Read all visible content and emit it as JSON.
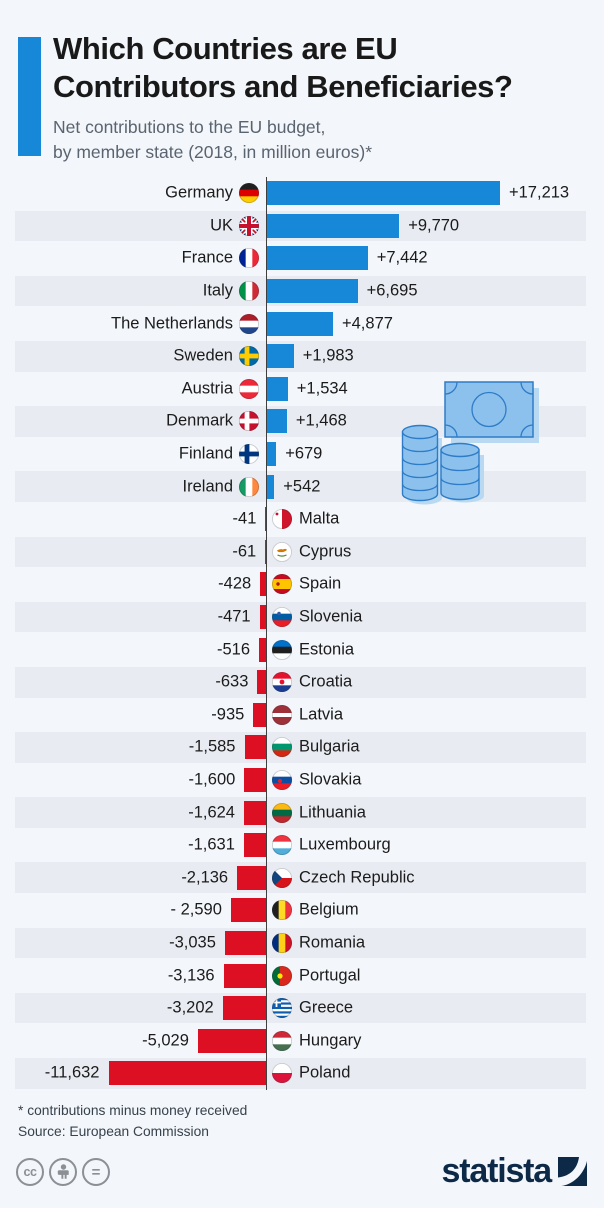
{
  "header": {
    "title_lines": [
      "Which Countries are EU",
      "Contributors and Beneficiaries?"
    ],
    "subtitle_lines": [
      "Net contributions to the EU budget,",
      "by member state (2018, in million euros)*"
    ]
  },
  "footer": {
    "footnote": "* contributions minus money received",
    "source": "Source: European Commission",
    "license_glyphs": {
      "cc": "cc",
      "no_derivatives": "="
    },
    "logo_text": "statista"
  },
  "colors": {
    "background": "#f3f6fa",
    "row_stripe": "#e8ecf2",
    "accent_blue": "#1787d8",
    "positive_bar": "#1787d8",
    "negative_bar": "#dc0f23",
    "axis_line": "#3f3f3f",
    "logo_navy": "#0c2a47",
    "illustration_fill": "#8cc1ee",
    "illustration_stroke": "#2e7cc6"
  },
  "chart_data": {
    "type": "bar",
    "orientation": "horizontal-diverging",
    "title": "Which Countries are EU Contributors and Beneficiaries?",
    "subtitle": "Net contributions to the EU budget, by member state (2018, in million euros)*",
    "unit": "million euros",
    "year": "2018",
    "value_axis_max": 17213,
    "grid": false,
    "legend": false,
    "rows": [
      {
        "country": "Germany",
        "value": 17213,
        "display": "+17,213",
        "flag": {
          "kind": "h",
          "colors": [
            "#1f1f1f",
            "#dd0000",
            "#ffce00"
          ]
        }
      },
      {
        "country": "UK",
        "value": 9770,
        "display": "+9,770",
        "flag": {
          "kind": "uk"
        }
      },
      {
        "country": "France",
        "value": 7442,
        "display": "+7,442",
        "flag": {
          "kind": "v",
          "colors": [
            "#002395",
            "#ffffff",
            "#ed2939"
          ]
        }
      },
      {
        "country": "Italy",
        "value": 6695,
        "display": "+6,695",
        "flag": {
          "kind": "v",
          "colors": [
            "#009246",
            "#ffffff",
            "#ce2b37"
          ]
        }
      },
      {
        "country": "The Netherlands",
        "value": 4877,
        "display": "+4,877",
        "flag": {
          "kind": "h",
          "colors": [
            "#ae1c28",
            "#ffffff",
            "#21468b"
          ]
        }
      },
      {
        "country": "Sweden",
        "value": 1983,
        "display": "+1,983",
        "flag": {
          "kind": "nordic",
          "colors": [
            "#006aa7",
            "#fecc00"
          ]
        }
      },
      {
        "country": "Austria",
        "value": 1534,
        "display": "+1,534",
        "flag": {
          "kind": "h",
          "colors": [
            "#ed2939",
            "#ffffff",
            "#ed2939"
          ]
        }
      },
      {
        "country": "Denmark",
        "value": 1468,
        "display": "+1,468",
        "flag": {
          "kind": "nordic",
          "colors": [
            "#c8102e",
            "#ffffff"
          ]
        }
      },
      {
        "country": "Finland",
        "value": 679,
        "display": "+679",
        "flag": {
          "kind": "nordic",
          "colors": [
            "#ffffff",
            "#003580"
          ]
        }
      },
      {
        "country": "Ireland",
        "value": 542,
        "display": "+542",
        "flag": {
          "kind": "v",
          "colors": [
            "#169b62",
            "#ffffff",
            "#ff883e"
          ]
        }
      },
      {
        "country": "Malta",
        "value": -41,
        "display": "-41",
        "flag": {
          "kind": "v",
          "colors": [
            "#ffffff",
            "#cf142b"
          ],
          "badge": {
            "x": 5,
            "y": 5,
            "r": 1.4,
            "color": "#c8102e"
          }
        }
      },
      {
        "country": "Cyprus",
        "value": -61,
        "display": "-61",
        "flag": {
          "kind": "cyprus"
        }
      },
      {
        "country": "Spain",
        "value": -428,
        "display": "-428",
        "flag": {
          "kind": "h",
          "colors": [
            "#c60b1e",
            "#ffc400",
            "#c60b1e"
          ],
          "weights": [
            1,
            2,
            1
          ],
          "badge": {
            "x": 6,
            "y": 10,
            "r": 1.7,
            "color": "#ad1519"
          }
        }
      },
      {
        "country": "Slovenia",
        "value": -471,
        "display": "-471",
        "flag": {
          "kind": "h",
          "colors": [
            "#ffffff",
            "#005da4",
            "#ed1c24"
          ],
          "badge": {
            "x": 7,
            "y": 6.5,
            "r": 1.8,
            "color": "#2d5da8"
          }
        }
      },
      {
        "country": "Estonia",
        "value": -516,
        "display": "-516",
        "flag": {
          "kind": "h",
          "colors": [
            "#0072ce",
            "#1f1f1f",
            "#ffffff"
          ]
        }
      },
      {
        "country": "Croatia",
        "value": -633,
        "display": "-633",
        "flag": {
          "kind": "h",
          "colors": [
            "#e8112d",
            "#ffffff",
            "#1b3c8f"
          ],
          "badge": {
            "x": 10,
            "y": 10,
            "r": 2.4,
            "color": "#e8112d"
          }
        }
      },
      {
        "country": "Latvia",
        "value": -935,
        "display": "-935",
        "flag": {
          "kind": "h",
          "colors": [
            "#9e3039",
            "#ffffff",
            "#9e3039"
          ],
          "weights": [
            2,
            1,
            2
          ]
        }
      },
      {
        "country": "Bulgaria",
        "value": -1585,
        "display": "-1,585",
        "flag": {
          "kind": "h",
          "colors": [
            "#ffffff",
            "#00966e",
            "#d62612"
          ]
        }
      },
      {
        "country": "Slovakia",
        "value": -1600,
        "display": "-1,600",
        "flag": {
          "kind": "h",
          "colors": [
            "#ffffff",
            "#0b4ea2",
            "#ee1c25"
          ],
          "badge": {
            "x": 8,
            "y": 11,
            "r": 2.1,
            "color": "#ee1c25"
          }
        }
      },
      {
        "country": "Lithuania",
        "value": -1624,
        "display": "-1,624",
        "flag": {
          "kind": "h",
          "colors": [
            "#fdb913",
            "#006a44",
            "#c1272d"
          ]
        }
      },
      {
        "country": "Luxembourg",
        "value": -1631,
        "display": "-1,631",
        "flag": {
          "kind": "h",
          "colors": [
            "#ef3340",
            "#ffffff",
            "#51adda"
          ]
        }
      },
      {
        "country": "Czech Republic",
        "value": -2136,
        "display": "-2,136",
        "flag": {
          "kind": "czech"
        }
      },
      {
        "country": "Belgium",
        "value": -2590,
        "display": "- 2,590",
        "flag": {
          "kind": "v",
          "colors": [
            "#1f1f1f",
            "#fdda24",
            "#ef3340"
          ]
        }
      },
      {
        "country": "Romania",
        "value": -3035,
        "display": "-3,035",
        "flag": {
          "kind": "v",
          "colors": [
            "#002b7f",
            "#fcd116",
            "#ce1126"
          ]
        }
      },
      {
        "country": "Portugal",
        "value": -3136,
        "display": "-3,136",
        "flag": {
          "kind": "v",
          "colors": [
            "#046a38",
            "#da291c"
          ],
          "weights": [
            2,
            3
          ],
          "badge": {
            "x": 8,
            "y": 10,
            "r": 2.6,
            "color": "#ffe900"
          }
        }
      },
      {
        "country": "Greece",
        "value": -3202,
        "display": "-3,202",
        "flag": {
          "kind": "greece"
        }
      },
      {
        "country": "Hungary",
        "value": -5029,
        "display": "-5,029",
        "flag": {
          "kind": "h",
          "colors": [
            "#ce2939",
            "#ffffff",
            "#477050"
          ]
        }
      },
      {
        "country": "Poland",
        "value": -11632,
        "display": "-11,632",
        "flag": {
          "kind": "h",
          "colors": [
            "#ffffff",
            "#dc143c"
          ]
        }
      }
    ]
  }
}
